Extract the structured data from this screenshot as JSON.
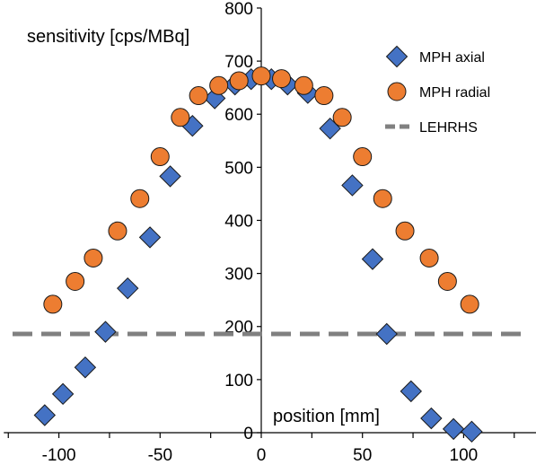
{
  "chart_data": {
    "type": "scatter",
    "title": "",
    "xlabel": "position [mm]",
    "ylabel": "sensitivity [cps/MBq]",
    "xlim": [
      -125,
      135
    ],
    "ylim": [
      0,
      800
    ],
    "xticks": [
      -100,
      -50,
      0,
      50,
      100
    ],
    "yticks": [
      0,
      100,
      200,
      300,
      400,
      500,
      600,
      700,
      800
    ],
    "grid": false,
    "legend_position": "top-right",
    "series": [
      {
        "name": "MPH axial",
        "marker": "diamond",
        "color": "#4472C4",
        "x": [
          -107,
          -98,
          -87,
          -77,
          -66,
          -55,
          -45,
          -34,
          -23,
          -13,
          -5,
          5,
          13,
          23,
          34,
          45,
          55,
          62,
          74,
          84,
          95,
          104
        ],
        "y": [
          33,
          73,
          123,
          190,
          272,
          368,
          483,
          578,
          630,
          656,
          666,
          666,
          656,
          640,
          573,
          466,
          327,
          186,
          78,
          27,
          7,
          2
        ]
      },
      {
        "name": "MPH radial",
        "marker": "circle",
        "color": "#ED7D31",
        "x": [
          -103,
          -92,
          -83,
          -71,
          -60,
          -50,
          -40,
          -31,
          -21,
          -11,
          0,
          10,
          21,
          31,
          40,
          50,
          60,
          71,
          83,
          92,
          103
        ],
        "y": [
          242,
          285,
          329,
          380,
          441,
          520,
          594,
          635,
          654,
          663,
          672,
          667,
          654,
          635,
          594,
          520,
          441,
          380,
          329,
          285,
          242
        ]
      },
      {
        "name": "LEHRHS",
        "marker": "dashed-line",
        "color": "#808080",
        "y": [
          186
        ]
      }
    ]
  }
}
